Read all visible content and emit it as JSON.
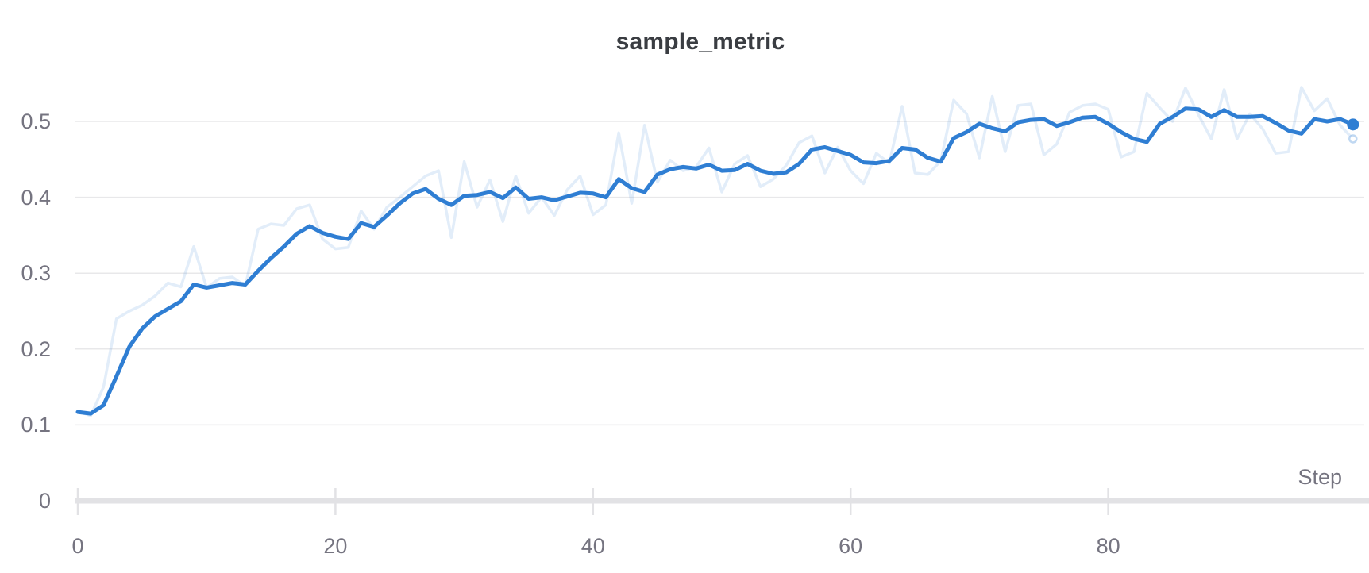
{
  "panel": {
    "background": "#ffffff"
  },
  "chart_data": {
    "type": "line",
    "title": "sample_metric",
    "xlabel": "Step",
    "ylabel": "",
    "legend": "none",
    "grid": "horizontal",
    "xlim": [
      0,
      99
    ],
    "ylim": [
      0,
      0.56
    ],
    "x_ticks": [
      0,
      20,
      40,
      60,
      80
    ],
    "y_ticks": [
      {
        "value": 0,
        "label": "0"
      },
      {
        "value": 0.1,
        "label": "0.1"
      },
      {
        "value": 0.2,
        "label": "0.2"
      },
      {
        "value": 0.3,
        "label": "0.3"
      },
      {
        "value": 0.4,
        "label": "0.4"
      },
      {
        "value": 0.5,
        "label": "0.5"
      }
    ],
    "x_step": 1,
    "series": [
      {
        "name": "sample_metric",
        "role": "original-unsmoothed",
        "color": "rgba(47,126,211,0.14)",
        "stroke_width": 3.5,
        "values": [
          0.118,
          0.112,
          0.15,
          0.24,
          0.25,
          0.258,
          0.27,
          0.287,
          0.282,
          0.335,
          0.281,
          0.293,
          0.295,
          0.283,
          0.358,
          0.365,
          0.363,
          0.385,
          0.39,
          0.345,
          0.332,
          0.334,
          0.382,
          0.358,
          0.387,
          0.4,
          0.414,
          0.428,
          0.435,
          0.347,
          0.447,
          0.387,
          0.423,
          0.368,
          0.428,
          0.379,
          0.4,
          0.376,
          0.41,
          0.428,
          0.377,
          0.39,
          0.485,
          0.392,
          0.495,
          0.42,
          0.449,
          0.435,
          0.44,
          0.465,
          0.407,
          0.444,
          0.455,
          0.414,
          0.424,
          0.442,
          0.472,
          0.481,
          0.432,
          0.466,
          0.435,
          0.418,
          0.458,
          0.445,
          0.52,
          0.432,
          0.43,
          0.448,
          0.528,
          0.51,
          0.452,
          0.533,
          0.46,
          0.521,
          0.523,
          0.456,
          0.47,
          0.512,
          0.521,
          0.523,
          0.516,
          0.453,
          0.46,
          0.537,
          0.518,
          0.5,
          0.544,
          0.509,
          0.477,
          0.542,
          0.477,
          0.51,
          0.49,
          0.458,
          0.46,
          0.545,
          0.514,
          0.53,
          0.495,
          0.477
        ]
      },
      {
        "name": "sample_metric",
        "role": "smoothed",
        "color": "#2f7ed3",
        "stroke_width": 5,
        "values": [
          0.117,
          0.115,
          0.126,
          0.164,
          0.203,
          0.227,
          0.243,
          0.253,
          0.263,
          0.285,
          0.281,
          0.284,
          0.287,
          0.285,
          0.303,
          0.32,
          0.335,
          0.352,
          0.362,
          0.353,
          0.348,
          0.345,
          0.366,
          0.361,
          0.376,
          0.392,
          0.405,
          0.411,
          0.398,
          0.39,
          0.402,
          0.403,
          0.407,
          0.399,
          0.413,
          0.398,
          0.4,
          0.396,
          0.401,
          0.406,
          0.405,
          0.4,
          0.424,
          0.412,
          0.407,
          0.43,
          0.437,
          0.44,
          0.438,
          0.443,
          0.435,
          0.436,
          0.444,
          0.435,
          0.431,
          0.433,
          0.444,
          0.463,
          0.466,
          0.461,
          0.456,
          0.446,
          0.445,
          0.448,
          0.465,
          0.463,
          0.452,
          0.447,
          0.478,
          0.486,
          0.497,
          0.491,
          0.487,
          0.499,
          0.502,
          0.503,
          0.494,
          0.499,
          0.505,
          0.506,
          0.497,
          0.486,
          0.477,
          0.473,
          0.497,
          0.506,
          0.517,
          0.516,
          0.506,
          0.515,
          0.506,
          0.506,
          0.507,
          0.498,
          0.488,
          0.484,
          0.503,
          0.5,
          0.503,
          0.496
        ]
      }
    ],
    "end_markers": {
      "smoothed_dot": {
        "step": 99,
        "value": 0.496
      },
      "original_ring": {
        "step": 99,
        "value": 0.477
      }
    },
    "colors": {
      "accent": "#2f7ed3",
      "raw_line": "rgba(47,126,211,0.14)",
      "raw_ring": "rgba(47,126,211,0.30)",
      "grid": "#e8e8ea",
      "axis_bar": "#e2e2e5",
      "tick_text": "#757480",
      "title_text": "#3a3d42",
      "background": "#ffffff"
    }
  }
}
